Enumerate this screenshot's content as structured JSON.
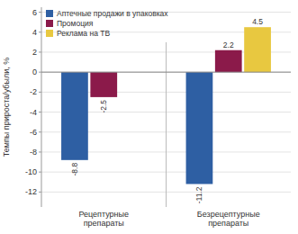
{
  "chart_data": {
    "type": "bar",
    "categories": [
      "Рецептурные\nпрепараты",
      "Безрецептурные\nпрепараты"
    ],
    "series": [
      {
        "name": "Аптечные продажи в упаковках",
        "color": "#2e5fa3",
        "values": [
          -8.8,
          -11.2
        ]
      },
      {
        "name": "Промоция",
        "color": "#8b1a4a",
        "values": [
          -2.5,
          2.2
        ]
      },
      {
        "name": "Реклама на ТВ",
        "color": "#e8c840",
        "values": [
          null,
          4.5
        ]
      }
    ],
    "ylabel": "Темпы прироста/убыли, %",
    "ylim": [
      -13.5,
      6.5
    ],
    "yticks": [
      -12,
      -10,
      -8,
      -6,
      -4,
      -2,
      0,
      2,
      4,
      6
    ],
    "grid": true,
    "legend": "upper left",
    "data_labels": true
  }
}
